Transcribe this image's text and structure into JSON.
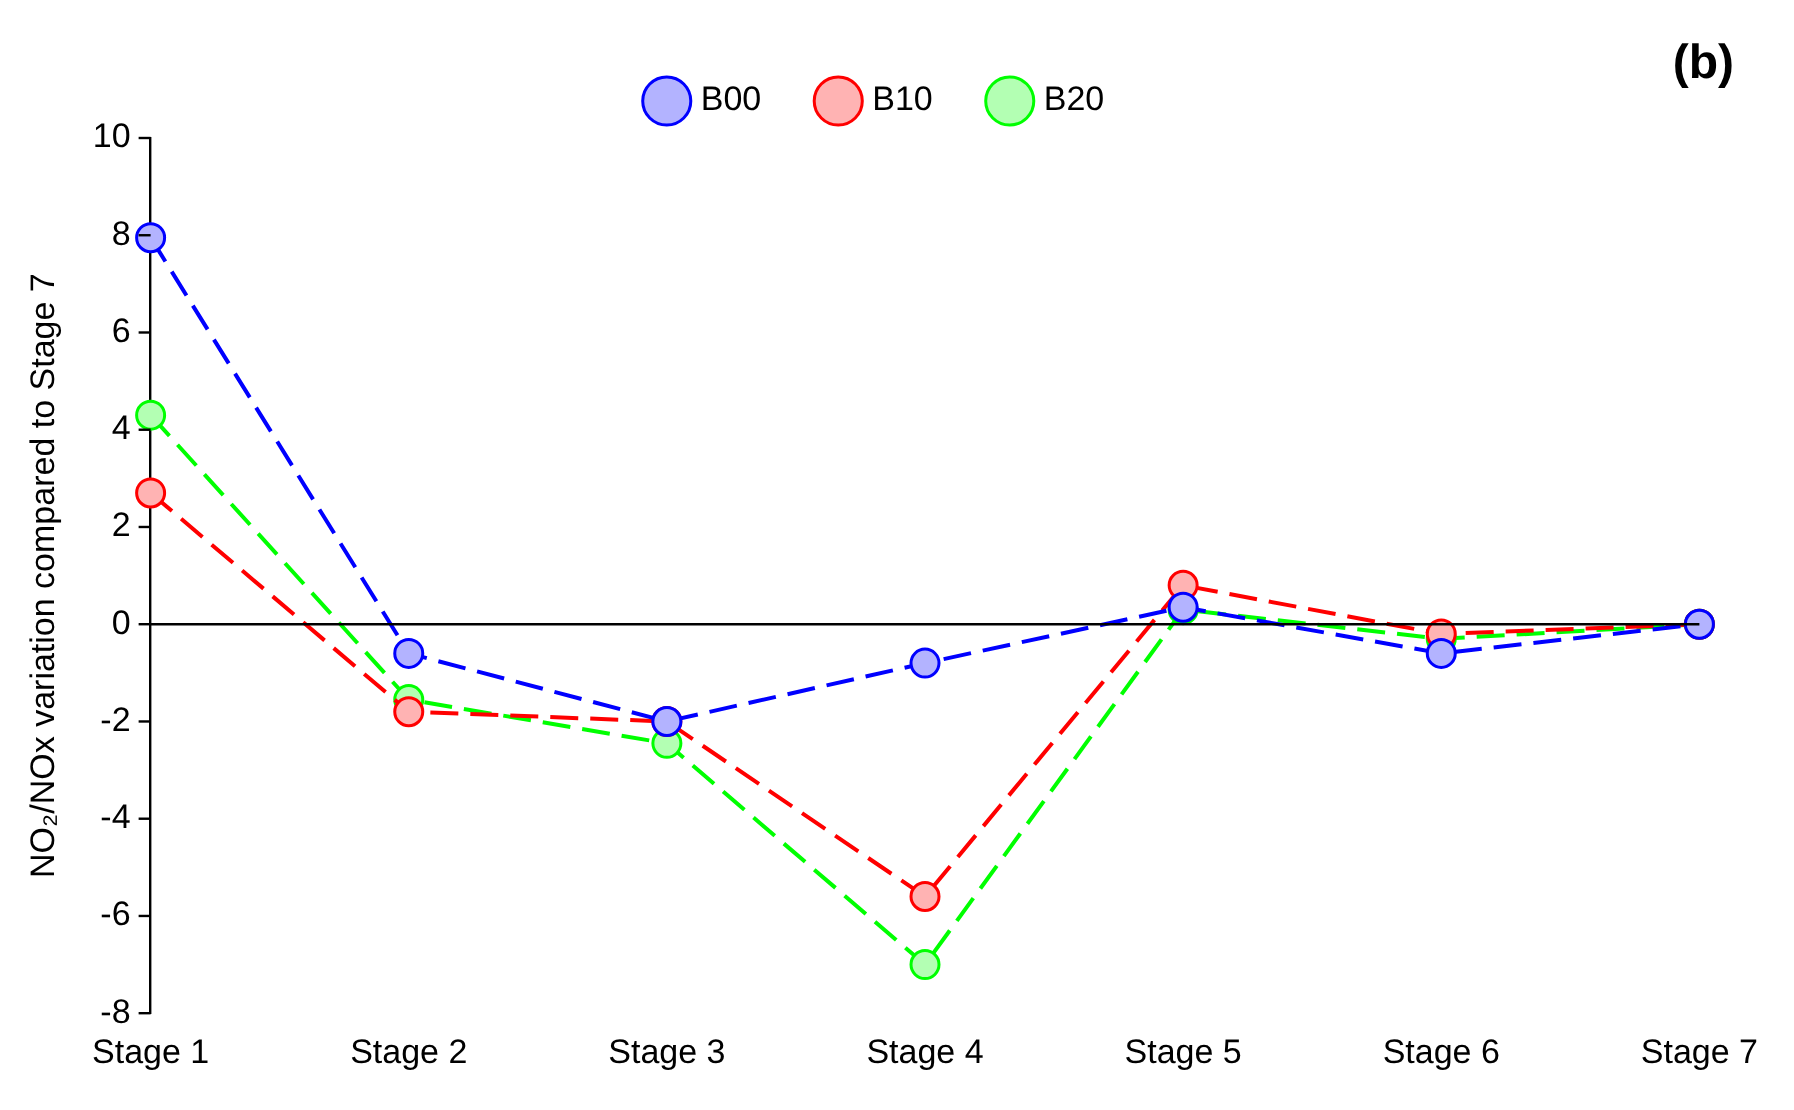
{
  "chart_data": {
    "type": "line",
    "ylabel": "NO₂/NOx variation compared to Stage 7",
    "annotations": [
      "(b)"
    ],
    "categories": [
      "Stage 1",
      "Stage 2",
      "Stage 3",
      "Stage 4",
      "Stage 5",
      "Stage 6",
      "Stage 7"
    ],
    "series": [
      {
        "name": "B00",
        "color": "#0000ff",
        "values": [
          7.95,
          -0.6,
          -2.0,
          -0.8,
          0.35,
          -0.6,
          0
        ]
      },
      {
        "name": "B10",
        "color": "#ff0000",
        "values": [
          2.7,
          -1.8,
          -2.0,
          -5.6,
          0.8,
          -0.2,
          0
        ]
      },
      {
        "name": "B20",
        "color": "#00ff00",
        "values": [
          4.3,
          -1.55,
          -2.45,
          -7.0,
          0.3,
          -0.3,
          0
        ]
      }
    ],
    "ylim": [
      -8,
      10
    ],
    "yticks": [
      -8,
      -6,
      -4,
      -2,
      0,
      2,
      4,
      6,
      8,
      10
    ],
    "grid": false,
    "ref_lines": [
      {
        "axis": "y",
        "value": 0,
        "color": "#000000"
      }
    ],
    "legend": "top",
    "marker": "circle",
    "line_style": "dashed"
  }
}
